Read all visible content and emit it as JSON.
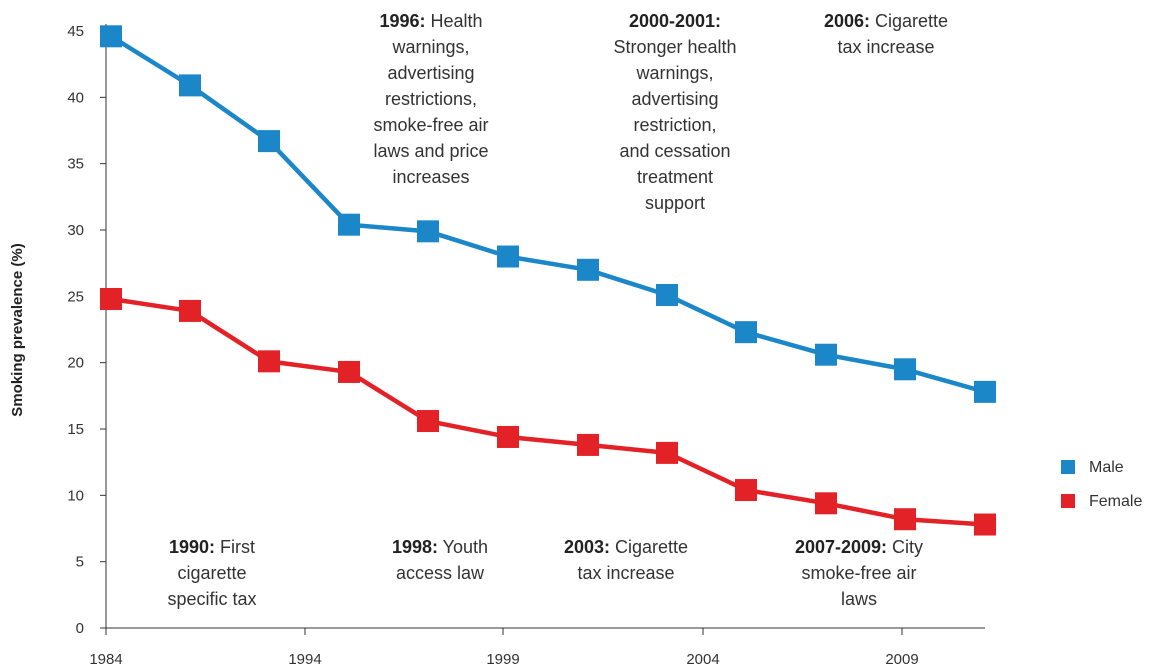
{
  "chart_data": {
    "type": "line",
    "title": "",
    "xlabel": "",
    "ylabel": "Smoking prevalence (%)",
    "xlim": [
      1984,
      2011
    ],
    "ylim": [
      0,
      45
    ],
    "x_ticks": [
      1984,
      1994,
      1999,
      2004,
      2009
    ],
    "y_ticks": [
      0,
      5,
      10,
      15,
      20,
      25,
      30,
      35,
      40,
      45
    ],
    "grid": false,
    "legend": "right",
    "series": [
      {
        "name": "Male",
        "color": "#1b87c9",
        "x": [
          1984,
          1986,
          1988,
          1990,
          1992,
          1994,
          1996,
          1998,
          2000,
          2002,
          2004,
          2006,
          2008
        ],
        "values": [
          44.6,
          40.9,
          36.7,
          30.4,
          29.9,
          28.0,
          27.0,
          25.1,
          22.3,
          20.6,
          19.5,
          17.8,
          null
        ]
      },
      {
        "name": "Female",
        "color": "#e32227",
        "x": [
          1984,
          1986,
          1988,
          1990,
          1992,
          1994,
          1996,
          1998,
          2000,
          2002,
          2004,
          2006,
          2008
        ],
        "values": [
          24.8,
          23.9,
          20.1,
          19.3,
          15.6,
          14.4,
          13.8,
          13.2,
          10.4,
          9.4,
          8.2,
          7.8,
          null
        ]
      }
    ],
    "annotations": [
      {
        "bold": "1996:",
        "lines": [
          "1996: Health",
          "warnings,",
          "advertising",
          "restrictions,",
          "smoke-free air",
          "laws and price",
          "increases"
        ],
        "pos": "top"
      },
      {
        "bold": "2000-2001:",
        "lines": [
          "2000-2001:",
          "Stronger health",
          "warnings,",
          "advertising",
          "restriction,",
          "and cessation",
          "treatment",
          "support"
        ],
        "pos": "top"
      },
      {
        "bold": "2006:",
        "lines": [
          "2006: Cigarette",
          "tax  increase"
        ],
        "pos": "top"
      },
      {
        "bold": "1990:",
        "lines": [
          "1990: First",
          "cigarette",
          "specific tax"
        ],
        "pos": "bottom"
      },
      {
        "bold": "1998:",
        "lines": [
          "1998: Youth",
          "access law"
        ],
        "pos": "bottom"
      },
      {
        "bold": "2003:",
        "lines": [
          "2003: Cigarette",
          "tax  increase"
        ],
        "pos": "bottom"
      },
      {
        "bold": "2007-2009:",
        "lines": [
          "2007-2009: City",
          "smoke-free air",
          "laws"
        ],
        "pos": "bottom"
      }
    ]
  }
}
